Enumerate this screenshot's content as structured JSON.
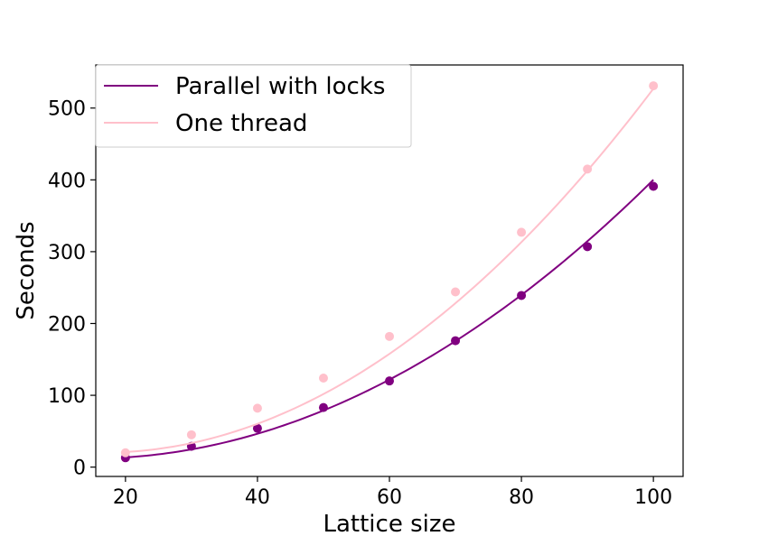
{
  "chart_data": {
    "type": "line",
    "xlabel": "Lattice size",
    "ylabel": "Seconds",
    "xlim": [
      15.5,
      104.5
    ],
    "ylim": [
      -13,
      560
    ],
    "xticks": [
      20,
      40,
      60,
      80,
      100
    ],
    "yticks": [
      0,
      100,
      200,
      300,
      400,
      500
    ],
    "x": [
      20,
      30,
      40,
      50,
      60,
      70,
      80,
      90,
      100
    ],
    "legend_position": "upper-left",
    "series": [
      {
        "name": "Parallel with locks",
        "color": "#800080",
        "points": [
          13,
          29,
          54,
          83,
          120,
          176,
          239,
          307,
          391
        ],
        "fit": [
          0.0531,
          -1.54,
          23.1
        ]
      },
      {
        "name": "One thread",
        "color": "#ffc0cb",
        "points": [
          20,
          45,
          82,
          124,
          182,
          244,
          327,
          415,
          531
        ],
        "fit": [
          0.0727,
          -2.4,
          40.0
        ]
      }
    ]
  }
}
